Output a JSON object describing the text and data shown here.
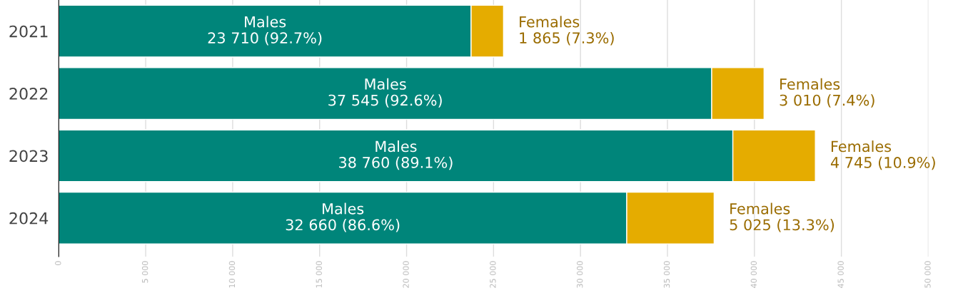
{
  "chart_data": {
    "type": "bar",
    "orientation": "horizontal",
    "stacked": true,
    "categories": [
      "2021",
      "2022",
      "2023",
      "2024"
    ],
    "series": [
      {
        "name": "Males",
        "color": "#00857a",
        "values": [
          23710,
          37545,
          38760,
          32660
        ],
        "value_labels": [
          "23 710 (92.7%)",
          "37 545 (92.6%)",
          "38 760 (89.1%)",
          "32 660 (86.6%)"
        ]
      },
      {
        "name": "Females",
        "color": "#e5ac00",
        "values": [
          1865,
          3010,
          4745,
          5025
        ],
        "value_labels": [
          "1 865 (7.3%)",
          "3 010 (7.4%)",
          "4 745 (10.9%)",
          "5 025 (13.3%)"
        ]
      }
    ],
    "xlim": [
      0,
      50000
    ],
    "xticks": [
      0,
      {
        "value": 5000,
        "label": "5 000"
      },
      {
        "value": 10000,
        "label": "10 000"
      },
      {
        "value": 15000,
        "label": "15 000"
      },
      {
        "value": 20000,
        "label": "20 000"
      },
      {
        "value": 25000,
        "label": "25 000"
      },
      {
        "value": 30000,
        "label": "30 000"
      },
      {
        "value": 35000,
        "label": "35 000"
      },
      {
        "value": 40000,
        "label": "40 000"
      },
      {
        "value": 45000,
        "label": "45 000"
      },
      {
        "value": 50000,
        "label": "50 000"
      }
    ],
    "grid": "x",
    "legend": false
  }
}
